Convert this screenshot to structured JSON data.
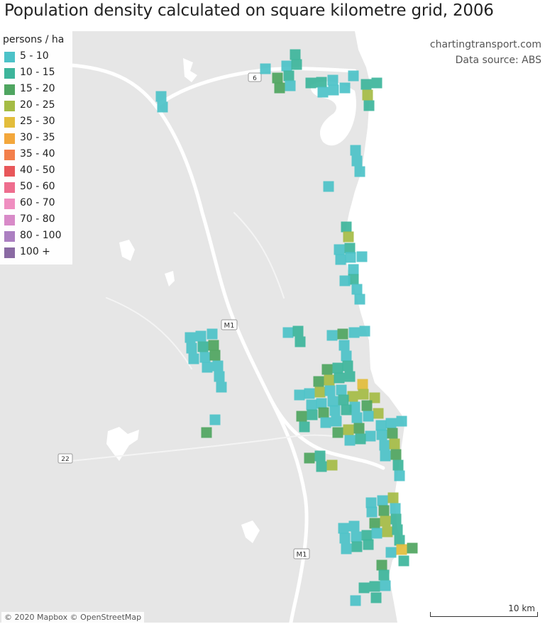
{
  "title": "Population density calculated on square kilometre grid, 2006",
  "credits": {
    "line1": "chartingtransport.com",
    "line2": "Data source: ABS"
  },
  "legend": {
    "title": "persons / ha",
    "items": [
      {
        "label": "5 - 10",
        "color": "#4cc2c8"
      },
      {
        "label": "10 - 15",
        "color": "#3db59b"
      },
      {
        "label": "15 - 20",
        "color": "#4fa560"
      },
      {
        "label": "20 - 25",
        "color": "#a5bc45"
      },
      {
        "label": "25 - 30",
        "color": "#e3bd3b"
      },
      {
        "label": "30 - 35",
        "color": "#f3a73b"
      },
      {
        "label": "35 - 40",
        "color": "#f37f4b"
      },
      {
        "label": "40 - 50",
        "color": "#e8575a"
      },
      {
        "label": "50 - 60",
        "color": "#ee6d8e"
      },
      {
        "label": "60 - 70",
        "color": "#ef8ec0"
      },
      {
        "label": "70 - 80",
        "color": "#d88ac8"
      },
      {
        "label": "80 - 100",
        "color": "#ab7fc1"
      },
      {
        "label": "100 +",
        "color": "#8a6aa3"
      }
    ]
  },
  "road_labels": {
    "m1_north": "M1",
    "m1_south": "M1",
    "r22": "22",
    "r6": "6"
  },
  "attribution": "© 2020 Mapbox © OpenStreetMap",
  "scale_bar": {
    "label": "10 km"
  }
}
